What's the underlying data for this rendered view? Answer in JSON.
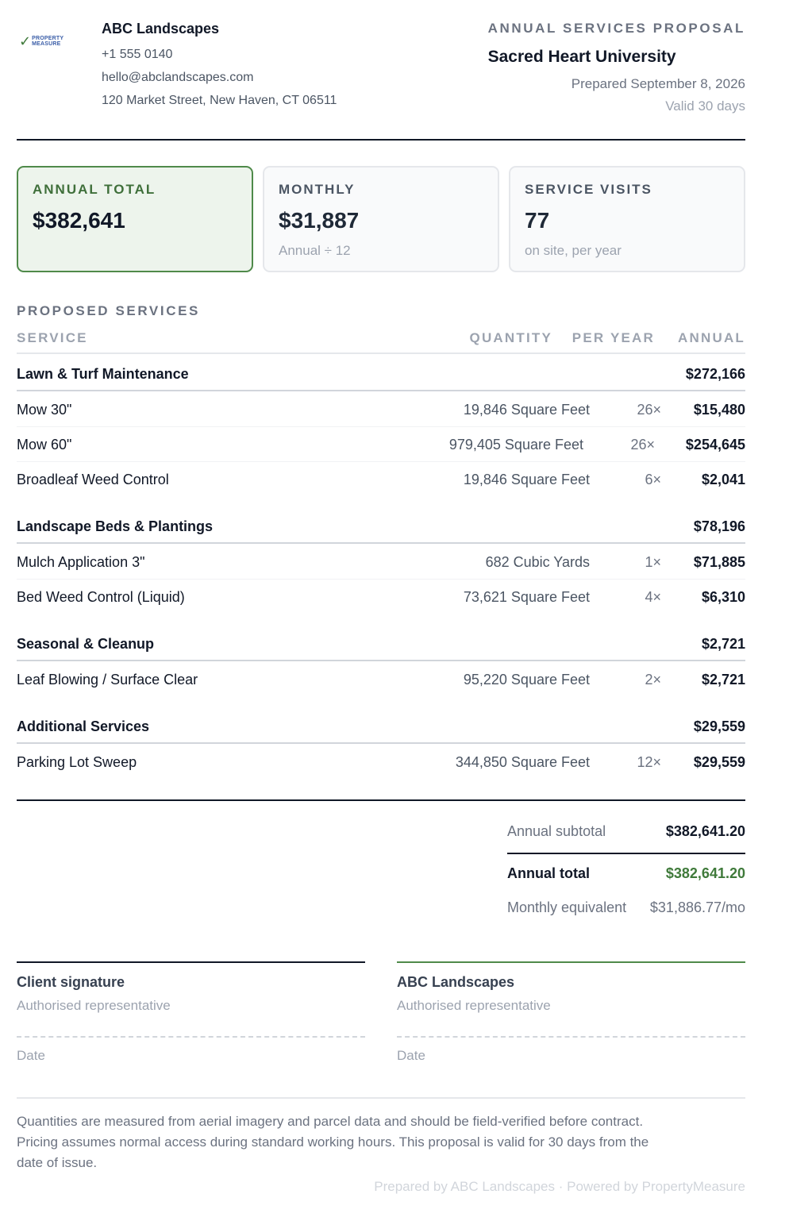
{
  "header": {
    "logo_text": "PROPERTY MEASURE",
    "company_name": "ABC Landscapes",
    "phone": "+1 555 0140",
    "email": "hello@abclandscapes.com",
    "address": "120 Market Street, New Haven, CT 06511",
    "proposal_kicker": "ANNUAL SERVICES PROPOSAL",
    "client_name": "Sacred Heart University",
    "prepared": "Prepared September 8, 2026",
    "valid": "Valid 30 days"
  },
  "summary": {
    "annual": {
      "label": "ANNUAL TOTAL",
      "value": "$382,641"
    },
    "monthly": {
      "label": "MONTHLY",
      "value": "$31,887",
      "sub": "Annual ÷ 12"
    },
    "visits": {
      "label": "SERVICE VISITS",
      "value": "77",
      "sub": "on site, per year"
    }
  },
  "services": {
    "title": "PROPOSED SERVICES",
    "columns": {
      "service": "SERVICE",
      "quantity": "QUANTITY",
      "per_year": "PER YEAR",
      "annual": "ANNUAL"
    },
    "groups": [
      {
        "name": "Lawn & Turf Maintenance",
        "total": "$272,166",
        "items": [
          {
            "name": "Mow 30\"",
            "quantity": "19,846 Square Feet",
            "freq": "26×",
            "annual": "$15,480"
          },
          {
            "name": "Mow 60\"",
            "quantity": "979,405 Square Feet",
            "freq": "26×",
            "annual": "$254,645"
          },
          {
            "name": "Broadleaf Weed Control",
            "quantity": "19,846 Square Feet",
            "freq": "6×",
            "annual": "$2,041"
          }
        ]
      },
      {
        "name": "Landscape Beds & Plantings",
        "total": "$78,196",
        "items": [
          {
            "name": "Mulch Application 3\"",
            "quantity": "682 Cubic Yards",
            "freq": "1×",
            "annual": "$71,885"
          },
          {
            "name": "Bed Weed Control (Liquid)",
            "quantity": "73,621 Square Feet",
            "freq": "4×",
            "annual": "$6,310"
          }
        ]
      },
      {
        "name": "Seasonal & Cleanup",
        "total": "$2,721",
        "items": [
          {
            "name": "Leaf Blowing / Surface Clear",
            "quantity": "95,220 Square Feet",
            "freq": "2×",
            "annual": "$2,721"
          }
        ]
      },
      {
        "name": "Additional Services",
        "total": "$29,559",
        "items": [
          {
            "name": "Parking Lot Sweep",
            "quantity": "344,850 Square Feet",
            "freq": "12×",
            "annual": "$29,559"
          }
        ]
      }
    ]
  },
  "totals": {
    "subtotal_label": "Annual subtotal",
    "subtotal": "$382,641.20",
    "total_label": "Annual total",
    "total": "$382,641.20",
    "monthly_label": "Monthly equivalent",
    "monthly": "$31,886.77/mo"
  },
  "signatures": {
    "client": {
      "title": "Client signature",
      "role": "Authorised representative",
      "date": "Date"
    },
    "provider": {
      "title": "ABC Landscapes",
      "role": "Authorised representative",
      "date": "Date"
    }
  },
  "footer": {
    "disclaimer": "Quantities are measured from aerial imagery and parcel data and should be field-verified before contract. Pricing assumes normal access during standard working hours. This proposal is valid for 30 days from the date of issue.",
    "credit": "Prepared by ABC Landscapes · Powered by PropertyMeasure"
  },
  "colors": {
    "accent": "#3f7a3a",
    "accent_bg": "#edf4ec",
    "text": "#111827",
    "muted": "#6b7280"
  }
}
